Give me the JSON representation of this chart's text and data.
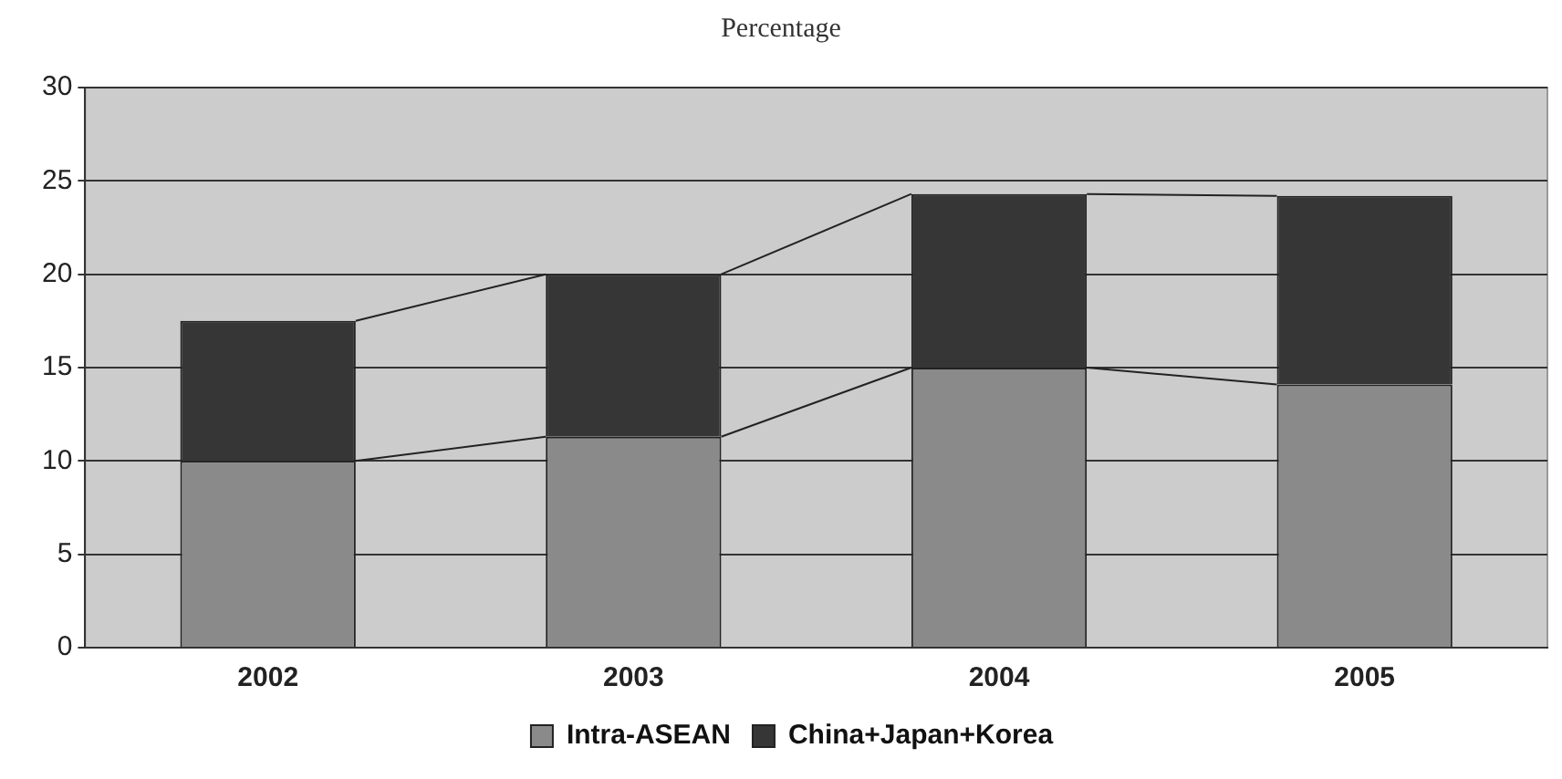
{
  "chart_data": {
    "type": "bar",
    "title": "Percentage",
    "stacked": true,
    "categories": [
      "2002",
      "2003",
      "2004",
      "2005"
    ],
    "series": [
      {
        "name": "Intra-ASEAN",
        "color": "#8a8a8a",
        "values": [
          10,
          11.3,
          15,
          14.1
        ]
      },
      {
        "name": "China+Japan+Korea",
        "color": "#363636",
        "values": [
          7.5,
          8.7,
          9.3,
          10.1
        ]
      }
    ],
    "ylim": [
      0,
      30
    ],
    "yticks": [
      0,
      5,
      10,
      15,
      20,
      25,
      30
    ],
    "grid": "y",
    "legend": "bottom"
  }
}
